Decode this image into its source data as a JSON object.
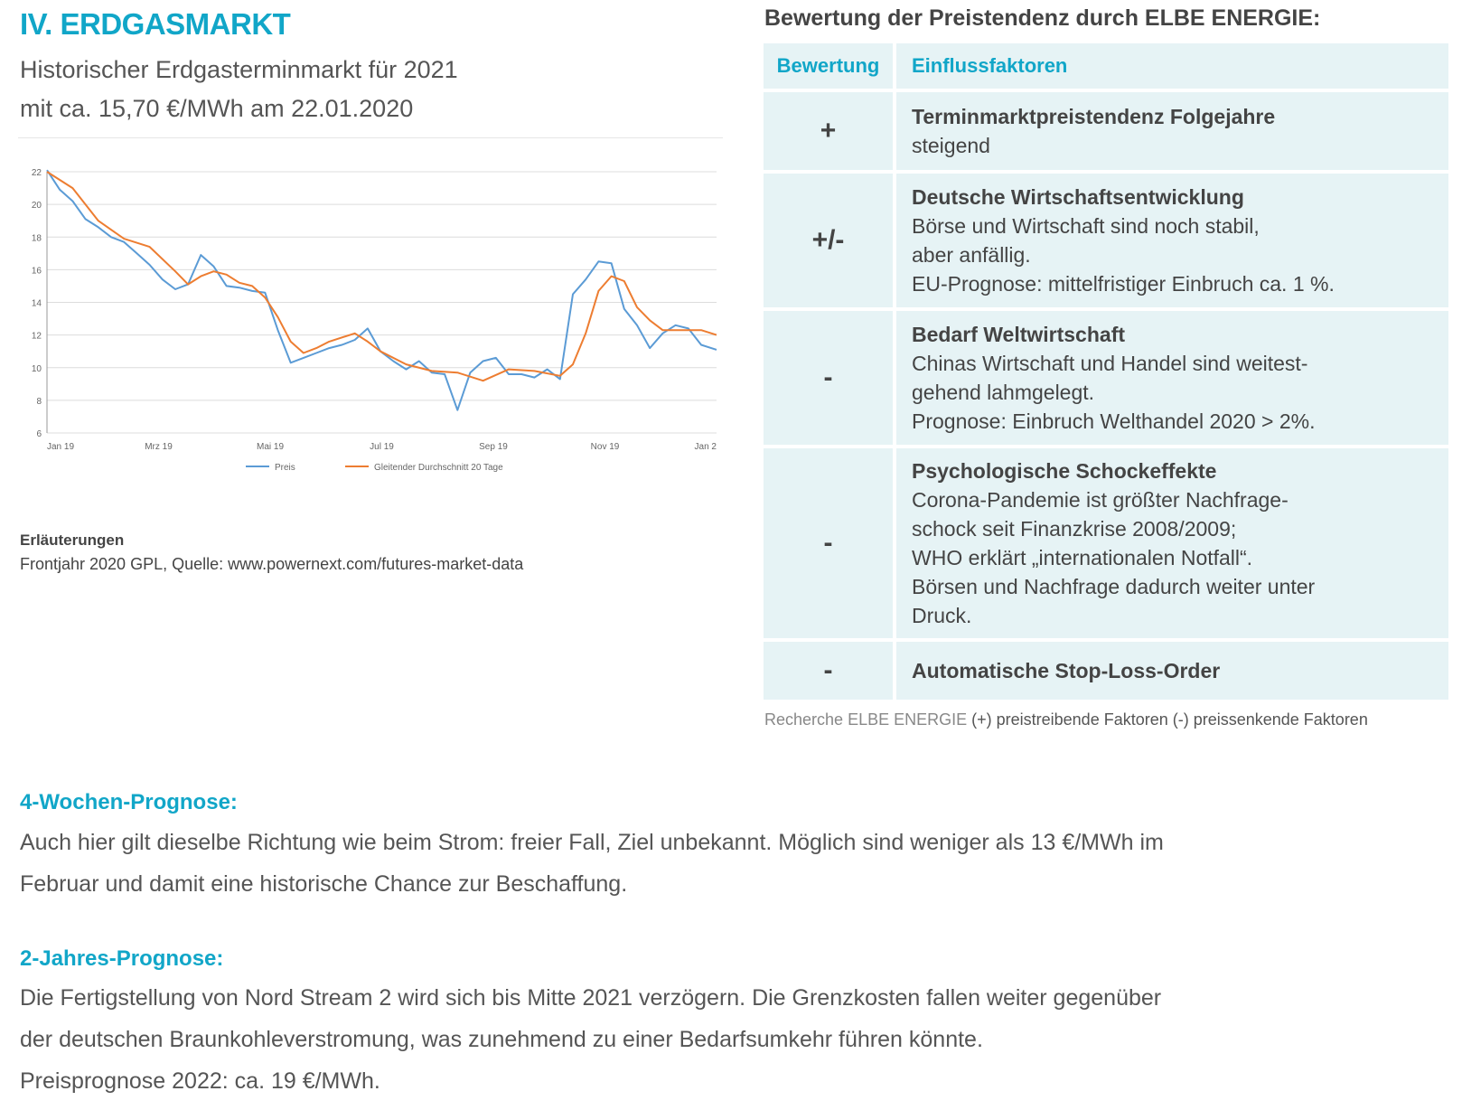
{
  "header": {
    "section_title": "IV. ERDGASMARKT",
    "subtitle_line1": "Historischer Erdgasterminmarkt für 2021",
    "subtitle_line2": "mit ca. 15,70 €/MWh am 22.01.2020"
  },
  "chart_data": {
    "type": "line",
    "ylim": [
      6,
      22
    ],
    "yticks": [
      "6",
      "8",
      "10",
      "12",
      "14",
      "16",
      "18",
      "20",
      "22"
    ],
    "xticks": [
      "Jan 19",
      "Mrz 19",
      "Mai 19",
      "Jul 19",
      "Sep 19",
      "Nov 19",
      "Jan 2"
    ],
    "x_count": 262,
    "grid": true,
    "legend_position": "bottom",
    "colors": {
      "Preis": "#5b9bd5",
      "Gleitender Durchschnitt 20 Tage": "#ed7d31"
    },
    "series": [
      {
        "name": "Preis",
        "x": [
          0,
          5,
          10,
          15,
          20,
          25,
          30,
          35,
          40,
          45,
          50,
          55,
          60,
          65,
          70,
          75,
          80,
          85,
          90,
          95,
          100,
          105,
          110,
          115,
          120,
          125,
          130,
          135,
          140,
          145,
          150,
          155,
          160,
          165,
          170,
          175,
          180,
          185,
          190,
          195,
          200,
          205,
          210,
          215,
          220,
          225,
          230,
          235,
          240,
          245,
          250,
          255,
          261
        ],
        "values": [
          22.1,
          20.9,
          20.2,
          19.1,
          18.6,
          18.0,
          17.7,
          17.0,
          16.3,
          15.4,
          14.8,
          15.1,
          16.9,
          16.2,
          15.0,
          14.9,
          14.7,
          14.6,
          12.3,
          10.3,
          10.6,
          10.9,
          11.2,
          11.4,
          11.7,
          12.4,
          11.0,
          10.4,
          9.9,
          10.4,
          9.7,
          9.6,
          7.4,
          9.7,
          10.4,
          10.6,
          9.6,
          9.6,
          9.4,
          9.9,
          9.3,
          14.5,
          15.4,
          16.5,
          16.4,
          13.6,
          12.6,
          11.2,
          12.1,
          12.6,
          12.4,
          11.4,
          11.1
        ]
      },
      {
        "name": "Gleitender Durchschnitt 20 Tage",
        "x": [
          0,
          10,
          20,
          30,
          40,
          50,
          55,
          60,
          65,
          70,
          75,
          80,
          85,
          90,
          95,
          100,
          105,
          110,
          120,
          125,
          130,
          140,
          150,
          160,
          170,
          180,
          190,
          200,
          205,
          210,
          215,
          220,
          225,
          230,
          235,
          240,
          245,
          250,
          255,
          261
        ],
        "values": [
          22.0,
          21.0,
          19.0,
          17.9,
          17.4,
          15.9,
          15.1,
          15.6,
          15.9,
          15.7,
          15.2,
          15.0,
          14.3,
          13.1,
          11.6,
          10.9,
          11.2,
          11.6,
          12.1,
          11.6,
          11.0,
          10.2,
          9.8,
          9.7,
          9.2,
          9.9,
          9.8,
          9.5,
          10.2,
          12.1,
          14.7,
          15.6,
          15.3,
          13.7,
          12.9,
          12.3,
          12.3,
          12.3,
          12.3,
          12.0
        ]
      }
    ]
  },
  "explanation": {
    "label": "Erläuterungen",
    "text": "Frontjahr 2020 GPL, Quelle: www.powernext.com/futures-market-data"
  },
  "table": {
    "title": "Bewertung der Preistendenz durch ELBE ENERGIE:",
    "col_rating": "Bewertung",
    "col_factors": "Einflussfaktoren",
    "rows": [
      {
        "rating": "+",
        "heading": "Terminmarktpreistendenz Folgejahre",
        "lines": [
          "steigend"
        ]
      },
      {
        "rating": "+/-",
        "heading": "Deutsche Wirtschaftsentwicklung",
        "lines": [
          "Börse und Wirtschaft sind noch stabil,",
          "aber anfällig.",
          "EU-Prognose: mittelfristiger Einbruch ca. 1 %."
        ]
      },
      {
        "rating": "-",
        "heading": "Bedarf Weltwirtschaft",
        "lines": [
          "Chinas Wirtschaft und Handel sind weitest-",
          "gehend lahmgelegt.",
          "Prognose: Einbruch Welthandel 2020 > 2%."
        ]
      },
      {
        "rating": "-",
        "heading": "Psychologische Schockeffekte",
        "lines": [
          "Corona-Pandemie ist größter Nachfrage-",
          "schock seit Finanzkrise 2008/2009;",
          "WHO erklärt „internationalen Notfall“.",
          "Börsen und Nachfrage dadurch weiter unter",
          "Druck."
        ]
      },
      {
        "rating": "-",
        "heading": "Automatische Stop-Loss-Order",
        "lines": []
      }
    ],
    "footnote_prefix": "Recherche",
    "footnote_brand": "ELBE ENERGIE",
    "footnote_rest": "(+) preistreibende Faktoren (-) preissenkende Faktoren"
  },
  "forecast_4w": {
    "heading": "4-Wochen-Prognose:",
    "line1": "Auch hier gilt dieselbe Richtung wie beim Strom: freier Fall, Ziel unbekannt. Möglich sind weniger als 13 €/MWh im",
    "line2": "Februar und damit eine historische Chance zur Beschaffung."
  },
  "forecast_2y": {
    "heading": "2-Jahres-Prognose:",
    "line1": "Die Fertigstellung von Nord Stream 2 wird sich bis Mitte 2021 verzögern. Die Grenzkosten fallen weiter gegenüber",
    "line2": "der deutschen Braunkohleverstromung, was zunehmend zu einer Bedarfsumkehr führen könnte.",
    "line3": "Preisprognose 2022: ca. 19 €/MWh."
  }
}
